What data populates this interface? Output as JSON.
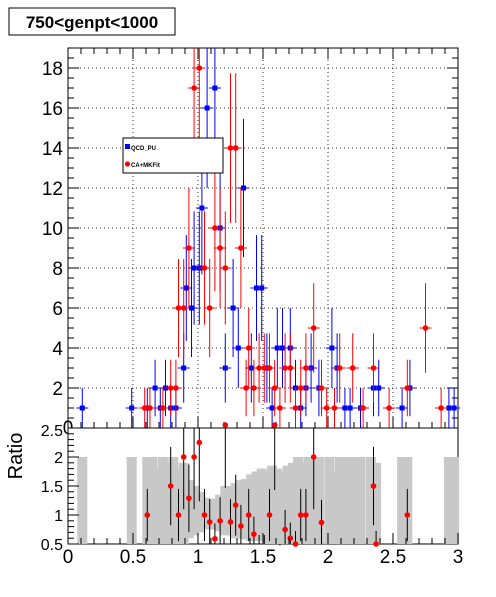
{
  "chart_data": [
    {
      "type": "scatter",
      "title": "750<genpt<1000",
      "xlim": [
        0,
        3
      ],
      "ylim": [
        0,
        19
      ],
      "yticks": [
        2,
        4,
        6,
        8,
        10,
        12,
        14,
        16,
        18
      ],
      "grid": true,
      "legend_placement": "upper-left",
      "series": [
        {
          "name": "QCD_PU",
          "color": "#0000ff",
          "marker": "square",
          "points": [
            {
              "x": 0.11,
              "y": 1
            },
            {
              "x": 0.49,
              "y": 1
            },
            {
              "x": 0.61,
              "y": 1
            },
            {
              "x": 0.67,
              "y": 2
            },
            {
              "x": 0.71,
              "y": 1
            },
            {
              "x": 0.75,
              "y": 2
            },
            {
              "x": 0.79,
              "y": 1
            },
            {
              "x": 0.83,
              "y": 1
            },
            {
              "x": 0.89,
              "y": 3
            },
            {
              "x": 0.91,
              "y": 7
            },
            {
              "x": 0.95,
              "y": 6
            },
            {
              "x": 0.97,
              "y": 8
            },
            {
              "x": 1.01,
              "y": 8
            },
            {
              "x": 1.03,
              "y": 11
            },
            {
              "x": 1.07,
              "y": 16
            },
            {
              "x": 1.13,
              "y": 17
            },
            {
              "x": 1.17,
              "y": 10
            },
            {
              "x": 1.21,
              "y": 3
            },
            {
              "x": 1.27,
              "y": 6
            },
            {
              "x": 1.31,
              "y": 4
            },
            {
              "x": 1.35,
              "y": 12
            },
            {
              "x": 1.41,
              "y": 3
            },
            {
              "x": 1.45,
              "y": 7
            },
            {
              "x": 1.49,
              "y": 7
            },
            {
              "x": 1.53,
              "y": 3
            },
            {
              "x": 1.57,
              "y": 1
            },
            {
              "x": 1.61,
              "y": 4
            },
            {
              "x": 1.65,
              "y": 4
            },
            {
              "x": 1.71,
              "y": 4
            },
            {
              "x": 1.75,
              "y": 2
            },
            {
              "x": 1.79,
              "y": 1
            },
            {
              "x": 1.83,
              "y": 2
            },
            {
              "x": 1.87,
              "y": 3
            },
            {
              "x": 1.93,
              "y": 2
            },
            {
              "x": 2.03,
              "y": 4
            },
            {
              "x": 2.07,
              "y": 3
            },
            {
              "x": 2.13,
              "y": 1
            },
            {
              "x": 2.17,
              "y": 1
            },
            {
              "x": 2.25,
              "y": 1
            },
            {
              "x": 2.35,
              "y": 2
            },
            {
              "x": 2.39,
              "y": 2
            },
            {
              "x": 2.57,
              "y": 1
            },
            {
              "x": 2.63,
              "y": 2
            },
            {
              "x": 2.93,
              "y": 1
            },
            {
              "x": 2.97,
              "y": 1
            }
          ]
        },
        {
          "name": "CA+MKFit",
          "color": "#ff0000",
          "marker": "circle",
          "points": [
            {
              "x": 0.59,
              "y": 1
            },
            {
              "x": 0.63,
              "y": 1
            },
            {
              "x": 0.73,
              "y": 1
            },
            {
              "x": 0.79,
              "y": 2
            },
            {
              "x": 0.83,
              "y": 2
            },
            {
              "x": 0.85,
              "y": 6
            },
            {
              "x": 0.89,
              "y": 6
            },
            {
              "x": 0.93,
              "y": 9
            },
            {
              "x": 0.97,
              "y": 17
            },
            {
              "x": 1.01,
              "y": 18
            },
            {
              "x": 1.05,
              "y": 8
            },
            {
              "x": 1.09,
              "y": 6
            },
            {
              "x": 1.13,
              "y": 10
            },
            {
              "x": 1.17,
              "y": 9
            },
            {
              "x": 1.21,
              "y": 8
            },
            {
              "x": 1.25,
              "y": 14
            },
            {
              "x": 1.29,
              "y": 14
            },
            {
              "x": 1.33,
              "y": 9
            },
            {
              "x": 1.37,
              "y": 2
            },
            {
              "x": 1.39,
              "y": 4
            },
            {
              "x": 1.43,
              "y": 2
            },
            {
              "x": 1.47,
              "y": 3
            },
            {
              "x": 1.51,
              "y": 3
            },
            {
              "x": 1.55,
              "y": 3
            },
            {
              "x": 1.59,
              "y": 2
            },
            {
              "x": 1.63,
              "y": 1
            },
            {
              "x": 1.67,
              "y": 3
            },
            {
              "x": 1.71,
              "y": 3
            },
            {
              "x": 1.75,
              "y": 1
            },
            {
              "x": 1.79,
              "y": 2
            },
            {
              "x": 1.83,
              "y": 3
            },
            {
              "x": 1.89,
              "y": 5
            },
            {
              "x": 1.95,
              "y": 2
            },
            {
              "x": 1.99,
              "y": 1
            },
            {
              "x": 2.05,
              "y": 1
            },
            {
              "x": 2.09,
              "y": 3
            },
            {
              "x": 2.19,
              "y": 3
            },
            {
              "x": 2.27,
              "y": 1
            },
            {
              "x": 2.35,
              "y": 3
            },
            {
              "x": 2.47,
              "y": 1
            },
            {
              "x": 2.61,
              "y": 2
            },
            {
              "x": 2.75,
              "y": 5
            },
            {
              "x": 2.87,
              "y": 1
            }
          ]
        }
      ]
    },
    {
      "type": "scatter",
      "ylabel": "Ratio",
      "xlim": [
        0,
        3
      ],
      "ylim": [
        0.5,
        2.5
      ],
      "xticks": [
        "0",
        "0.5",
        "1",
        "1.5",
        "2",
        "2.5",
        "3"
      ],
      "xtick_values": [
        0,
        0.5,
        1,
        1.5,
        2,
        2.5,
        3
      ],
      "yticks": [
        "0.5",
        "1",
        "1.5",
        "2"
      ],
      "ytick_values": [
        0.5,
        1,
        1.5,
        2
      ],
      "top_tick_label": "2.5",
      "points_color": "#ff0000",
      "band_color": "#c8c8c8",
      "points": [
        {
          "x": 0.61,
          "y": 1.0
        },
        {
          "x": 0.79,
          "y": 1.5
        },
        {
          "x": 0.85,
          "y": 1.0
        },
        {
          "x": 0.89,
          "y": 2.0
        },
        {
          "x": 0.93,
          "y": 1.29
        },
        {
          "x": 0.97,
          "y": 2.0
        },
        {
          "x": 1.01,
          "y": 2.25
        },
        {
          "x": 1.05,
          "y": 1.0
        },
        {
          "x": 1.09,
          "y": 0.88
        },
        {
          "x": 1.13,
          "y": 0.59
        },
        {
          "x": 1.17,
          "y": 0.9
        },
        {
          "x": 1.21,
          "y": 2.67
        },
        {
          "x": 1.25,
          "y": 0.88
        },
        {
          "x": 1.29,
          "y": 1.17
        },
        {
          "x": 1.33,
          "y": 0.81
        },
        {
          "x": 1.39,
          "y": 1.0
        },
        {
          "x": 1.43,
          "y": 0.67
        },
        {
          "x": 1.47,
          "y": 0.43
        },
        {
          "x": 1.51,
          "y": 0.43
        },
        {
          "x": 1.55,
          "y": 1.0
        },
        {
          "x": 1.59,
          "y": 2.6
        },
        {
          "x": 1.63,
          "y": 0.25
        },
        {
          "x": 1.67,
          "y": 0.75
        },
        {
          "x": 1.71,
          "y": 0.6
        },
        {
          "x": 1.75,
          "y": 0.5
        },
        {
          "x": 1.79,
          "y": 1.0
        },
        {
          "x": 1.83,
          "y": 1.0
        },
        {
          "x": 1.89,
          "y": 2.0
        },
        {
          "x": 1.95,
          "y": 0.87
        },
        {
          "x": 2.35,
          "y": 1.5
        },
        {
          "x": 2.37,
          "y": 0.5
        },
        {
          "x": 2.61,
          "y": 1.0
        }
      ],
      "bands": [
        {
          "x": 0.11,
          "lo": 0.5,
          "hi": 2.0
        },
        {
          "x": 0.49,
          "lo": 0.5,
          "hi": 2.0
        },
        {
          "x": 0.61,
          "lo": 0.5,
          "hi": 2.0
        },
        {
          "x": 0.65,
          "lo": 0.5,
          "hi": 2.0
        },
        {
          "x": 0.69,
          "lo": 0.5,
          "hi": 1.8
        },
        {
          "x": 0.73,
          "lo": 0.5,
          "hi": 2.0
        },
        {
          "x": 0.77,
          "lo": 0.5,
          "hi": 1.9
        },
        {
          "x": 0.81,
          "lo": 0.5,
          "hi": 2.0
        },
        {
          "x": 0.85,
          "lo": 0.5,
          "hi": 1.8
        },
        {
          "x": 0.89,
          "lo": 0.5,
          "hi": 1.9
        },
        {
          "x": 0.93,
          "lo": 0.6,
          "hi": 1.6
        },
        {
          "x": 0.97,
          "lo": 0.65,
          "hi": 1.5
        },
        {
          "x": 1.01,
          "lo": 0.7,
          "hi": 1.4
        },
        {
          "x": 1.05,
          "lo": 0.75,
          "hi": 1.3
        },
        {
          "x": 1.09,
          "lo": 0.75,
          "hi": 1.28
        },
        {
          "x": 1.13,
          "lo": 0.75,
          "hi": 1.28
        },
        {
          "x": 1.17,
          "lo": 0.72,
          "hi": 1.35
        },
        {
          "x": 1.21,
          "lo": 0.65,
          "hi": 1.5
        },
        {
          "x": 1.25,
          "lo": 0.65,
          "hi": 1.5
        },
        {
          "x": 1.29,
          "lo": 0.6,
          "hi": 1.55
        },
        {
          "x": 1.33,
          "lo": 0.6,
          "hi": 1.6
        },
        {
          "x": 1.37,
          "lo": 0.58,
          "hi": 1.62
        },
        {
          "x": 1.41,
          "lo": 0.55,
          "hi": 1.7
        },
        {
          "x": 1.45,
          "lo": 0.55,
          "hi": 1.75
        },
        {
          "x": 1.49,
          "lo": 0.55,
          "hi": 1.8
        },
        {
          "x": 1.53,
          "lo": 0.5,
          "hi": 1.75
        },
        {
          "x": 1.57,
          "lo": 0.5,
          "hi": 1.85
        },
        {
          "x": 1.61,
          "lo": 0.5,
          "hi": 1.8
        },
        {
          "x": 1.65,
          "lo": 0.5,
          "hi": 1.75
        },
        {
          "x": 1.69,
          "lo": 0.5,
          "hi": 1.85
        },
        {
          "x": 1.73,
          "lo": 0.5,
          "hi": 1.9
        },
        {
          "x": 1.77,
          "lo": 0.5,
          "hi": 2.0
        },
        {
          "x": 1.81,
          "lo": 0.5,
          "hi": 1.9
        },
        {
          "x": 1.85,
          "lo": 0.5,
          "hi": 2.0
        },
        {
          "x": 1.89,
          "lo": 0.5,
          "hi": 2.0
        },
        {
          "x": 1.93,
          "lo": 0.5,
          "hi": 2.0
        },
        {
          "x": 2.01,
          "lo": 0.5,
          "hi": 2.0
        },
        {
          "x": 2.05,
          "lo": 0.5,
          "hi": 1.75
        },
        {
          "x": 2.09,
          "lo": 0.5,
          "hi": 2.0
        },
        {
          "x": 2.13,
          "lo": 0.5,
          "hi": 2.0
        },
        {
          "x": 2.17,
          "lo": 0.5,
          "hi": 2.0
        },
        {
          "x": 2.21,
          "lo": 0.5,
          "hi": 2.0
        },
        {
          "x": 2.25,
          "lo": 0.5,
          "hi": 2.0
        },
        {
          "x": 2.33,
          "lo": 0.5,
          "hi": 2.0
        },
        {
          "x": 2.37,
          "lo": 0.5,
          "hi": 1.9
        },
        {
          "x": 2.57,
          "lo": 0.5,
          "hi": 2.0
        },
        {
          "x": 2.61,
          "lo": 0.5,
          "hi": 2.0
        },
        {
          "x": 2.93,
          "lo": 0.5,
          "hi": 2.0
        },
        {
          "x": 2.97,
          "lo": 0.5,
          "hi": 2.0
        }
      ]
    }
  ]
}
